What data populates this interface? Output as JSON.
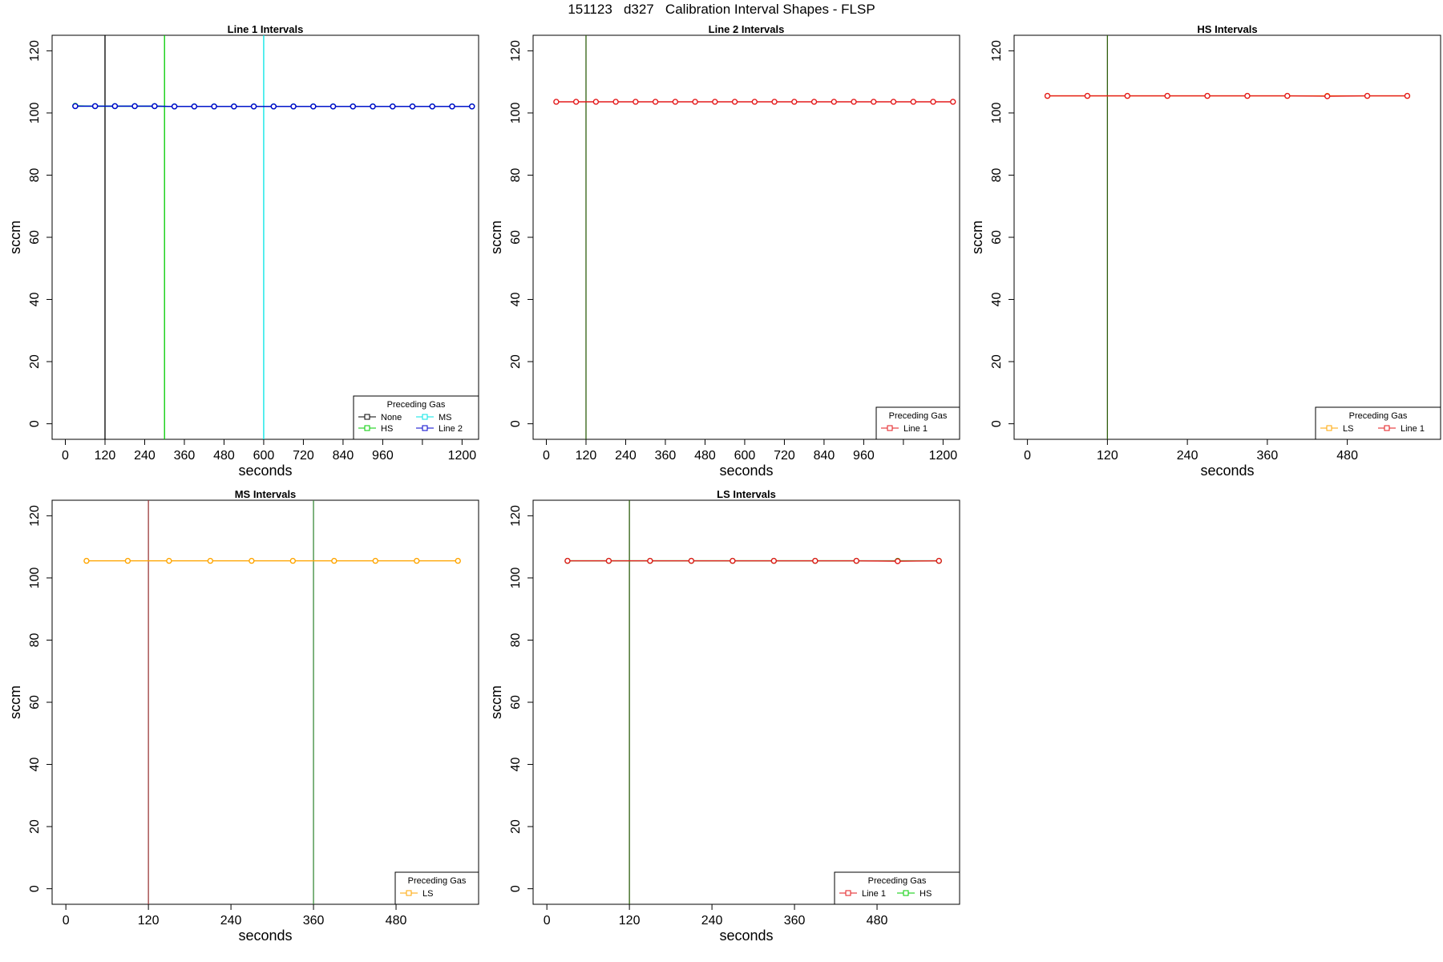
{
  "figure": {
    "title": "151123   d327   Calibration Interval Shapes - FLSP"
  },
  "colors": {
    "none": "#000000",
    "hs": "#00cc00",
    "ms": "#00e5e5",
    "line2": "#0000cc",
    "line1": "#e31a1c",
    "ls": "#ffa500",
    "teal_overlap": "#00a080",
    "red_vline": "#9b3b3b",
    "green_vline": "#3a8a3a",
    "olive_vline": "#2e5e0e",
    "frame": "#000000"
  },
  "chart_data": [
    {
      "type": "line",
      "title": "Line 1 Intervals",
      "xlabel": "seconds",
      "ylabel": "sccm",
      "xlim": [
        -40,
        1250
      ],
      "ylim": [
        -5,
        125
      ],
      "xticks": [
        0,
        120,
        240,
        360,
        480,
        600,
        720,
        840,
        960,
        1080,
        1200
      ],
      "xtick_labels": [
        "0",
        "120",
        "240",
        "360",
        "480",
        "600",
        "720",
        "840",
        "960",
        "",
        "1200"
      ],
      "yticks": [
        0,
        20,
        40,
        60,
        80,
        100,
        120
      ],
      "ytick_labels": [
        "0",
        "20",
        "40",
        "60",
        "80",
        "100",
        "120"
      ],
      "vlines": [
        {
          "x": 120,
          "color": "#000000"
        },
        {
          "x": 300,
          "color": "#00cc00"
        },
        {
          "x": 600,
          "color": "#00e5e5"
        }
      ],
      "series": [
        {
          "name": "None",
          "color": "#00a080",
          "x": [
            30,
            90,
            150,
            210,
            270,
            330,
            390,
            450,
            510,
            570,
            630,
            690,
            750,
            810,
            870,
            930,
            990,
            1050,
            1110,
            1170,
            1230
          ],
          "y": [
            102.2,
            102.2,
            102.2,
            102.2,
            102.2,
            102.1,
            102.1,
            102.1,
            102.1,
            102.1,
            102.1,
            102.1,
            102.1,
            102.1,
            102.1,
            102.1,
            102.1,
            102.1,
            102.1,
            102.1,
            102.1
          ]
        },
        {
          "name": "HS",
          "color": "#00cc00",
          "x": [
            30,
            90,
            150,
            210,
            270,
            330,
            390,
            450,
            510,
            570,
            630,
            690,
            750,
            810,
            870,
            930,
            990,
            1050,
            1110,
            1170,
            1230
          ],
          "y": [
            102.3,
            102.2,
            102.2,
            102.2,
            102.2,
            102.1,
            102.1,
            102.1,
            102.1,
            102.1,
            102.1,
            102.1,
            102.1,
            102.1,
            102.1,
            102.1,
            102.1,
            102.1,
            102.1,
            102.1,
            102.1
          ]
        },
        {
          "name": "MS",
          "color": "#00e5e5",
          "x": [
            30,
            90,
            150,
            210,
            270,
            330,
            390,
            450,
            510,
            570,
            630,
            690,
            750,
            810,
            870,
            930,
            990,
            1050,
            1110,
            1170,
            1230
          ],
          "y": [
            102.2,
            102.2,
            102.2,
            102.2,
            102.2,
            102.1,
            102.1,
            102.1,
            102.1,
            102.1,
            102.1,
            102.1,
            102.1,
            102.1,
            102.1,
            102.1,
            102.1,
            102.1,
            102.1,
            102.1,
            102.1
          ]
        },
        {
          "name": "Line 2",
          "color": "#0000cc",
          "x": [
            30,
            90,
            150,
            210,
            270,
            330,
            390,
            450,
            510,
            570,
            630,
            690,
            750,
            810,
            870,
            930,
            990,
            1050,
            1110,
            1170,
            1230
          ],
          "y": [
            102.2,
            102.2,
            102.2,
            102.2,
            102.2,
            102.1,
            102.1,
            102.1,
            102.1,
            102.1,
            102.1,
            102.1,
            102.1,
            102.1,
            102.1,
            102.1,
            102.1,
            102.1,
            102.1,
            102.1,
            102.1
          ]
        }
      ],
      "legend": {
        "title": "Preceding Gas",
        "position": "bottom-right",
        "columns": 2,
        "entries": [
          {
            "label": "None",
            "color": "#000000"
          },
          {
            "label": "MS",
            "color": "#00e5e5"
          },
          {
            "label": "HS",
            "color": "#00cc00"
          },
          {
            "label": "Line 2",
            "color": "#0000cc"
          }
        ]
      }
    },
    {
      "type": "line",
      "title": "Line 2 Intervals",
      "xlabel": "seconds",
      "ylabel": "sccm",
      "xlim": [
        -40,
        1250
      ],
      "ylim": [
        -5,
        125
      ],
      "xticks": [
        0,
        120,
        240,
        360,
        480,
        600,
        720,
        840,
        960,
        1080,
        1200
      ],
      "xtick_labels": [
        "0",
        "120",
        "240",
        "360",
        "480",
        "600",
        "720",
        "840",
        "960",
        "",
        "1200"
      ],
      "yticks": [
        0,
        20,
        40,
        60,
        80,
        100,
        120
      ],
      "ytick_labels": [
        "0",
        "20",
        "40",
        "60",
        "80",
        "100",
        "120"
      ],
      "vlines": [
        {
          "x": 120,
          "color": "#2e5e0e"
        }
      ],
      "series": [
        {
          "name": "Line 1",
          "color": "#e31a1c",
          "x": [
            30,
            90,
            150,
            210,
            270,
            330,
            390,
            450,
            510,
            570,
            630,
            690,
            750,
            810,
            870,
            930,
            990,
            1050,
            1110,
            1170,
            1230
          ],
          "y": [
            103.6,
            103.6,
            103.6,
            103.6,
            103.6,
            103.6,
            103.6,
            103.6,
            103.6,
            103.6,
            103.6,
            103.6,
            103.6,
            103.6,
            103.6,
            103.6,
            103.6,
            103.6,
            103.6,
            103.6,
            103.6
          ]
        }
      ],
      "legend": {
        "title": "Preceding Gas",
        "position": "bottom-right",
        "columns": 1,
        "entries": [
          {
            "label": "Line 1",
            "color": "#e31a1c"
          }
        ]
      }
    },
    {
      "type": "line",
      "title": "HS Intervals",
      "xlabel": "seconds",
      "ylabel": "sccm",
      "xlim": [
        -20,
        620
      ],
      "ylim": [
        -5,
        125
      ],
      "xticks": [
        0,
        120,
        240,
        360,
        480
      ],
      "xtick_labels": [
        "0",
        "120",
        "240",
        "360",
        "480"
      ],
      "yticks": [
        0,
        20,
        40,
        60,
        80,
        100,
        120
      ],
      "ytick_labels": [
        "0",
        "20",
        "40",
        "60",
        "80",
        "100",
        "120"
      ],
      "vlines": [
        {
          "x": 120,
          "color": "#2e5e0e"
        }
      ],
      "series": [
        {
          "name": "LS",
          "color": "#ffa500",
          "x": [
            30,
            90,
            150,
            210,
            270,
            330,
            390,
            450,
            510,
            570
          ],
          "y": [
            105.5,
            105.5,
            105.5,
            105.5,
            105.5,
            105.5,
            105.5,
            105.5,
            105.5,
            105.5
          ]
        },
        {
          "name": "Line 1",
          "color": "#e31a1c",
          "x": [
            30,
            90,
            150,
            210,
            270,
            330,
            390,
            450,
            510,
            570
          ],
          "y": [
            105.5,
            105.5,
            105.5,
            105.5,
            105.5,
            105.5,
            105.5,
            105.4,
            105.5,
            105.5
          ]
        }
      ],
      "legend": {
        "title": "Preceding Gas",
        "position": "bottom-right",
        "columns": 2,
        "entries": [
          {
            "label": "LS",
            "color": "#ffa500"
          },
          {
            "label": "Line 1",
            "color": "#e31a1c"
          }
        ]
      }
    },
    {
      "type": "line",
      "title": "MS Intervals",
      "xlabel": "seconds",
      "ylabel": "sccm",
      "xlim": [
        -20,
        600
      ],
      "ylim": [
        -5,
        125
      ],
      "xticks": [
        0,
        120,
        240,
        360,
        480
      ],
      "xtick_labels": [
        "0",
        "120",
        "240",
        "360",
        "480"
      ],
      "yticks": [
        0,
        20,
        40,
        60,
        80,
        100,
        120
      ],
      "ytick_labels": [
        "0",
        "20",
        "40",
        "60",
        "80",
        "100",
        "120"
      ],
      "vlines": [
        {
          "x": 120,
          "color": "#9b3b3b"
        },
        {
          "x": 360,
          "color": "#3a8a3a"
        }
      ],
      "series": [
        {
          "name": "LS",
          "color": "#ffa500",
          "x": [
            30,
            90,
            150,
            210,
            270,
            330,
            390,
            450,
            510,
            570
          ],
          "y": [
            105.5,
            105.5,
            105.5,
            105.5,
            105.5,
            105.5,
            105.5,
            105.5,
            105.5,
            105.5
          ]
        }
      ],
      "legend": {
        "title": "Preceding Gas",
        "position": "bottom-right",
        "columns": 1,
        "entries": [
          {
            "label": "LS",
            "color": "#ffa500"
          }
        ]
      }
    },
    {
      "type": "line",
      "title": "LS Intervals",
      "xlabel": "seconds",
      "ylabel": "sccm",
      "xlim": [
        -20,
        600
      ],
      "ylim": [
        -5,
        125
      ],
      "xticks": [
        0,
        120,
        240,
        360,
        480
      ],
      "xtick_labels": [
        "0",
        "120",
        "240",
        "360",
        "480"
      ],
      "yticks": [
        0,
        20,
        40,
        60,
        80,
        100,
        120
      ],
      "ytick_labels": [
        "0",
        "20",
        "40",
        "60",
        "80",
        "100",
        "120"
      ],
      "vlines": [
        {
          "x": 120,
          "color": "#2e5e0e"
        }
      ],
      "series": [
        {
          "name": "HS",
          "color": "#00cc00",
          "x": [
            30,
            90,
            150,
            210,
            270,
            330,
            390,
            450,
            510,
            570
          ],
          "y": [
            105.5,
            105.5,
            105.5,
            105.5,
            105.5,
            105.5,
            105.5,
            105.5,
            105.5,
            105.5
          ]
        },
        {
          "name": "Line 1",
          "color": "#e31a1c",
          "x": [
            30,
            90,
            150,
            210,
            270,
            330,
            390,
            450,
            510,
            570
          ],
          "y": [
            105.5,
            105.5,
            105.5,
            105.5,
            105.5,
            105.5,
            105.5,
            105.5,
            105.4,
            105.5
          ]
        }
      ],
      "legend": {
        "title": "Preceding Gas",
        "position": "bottom-right",
        "columns": 2,
        "entries": [
          {
            "label": "Line 1",
            "color": "#e31a1c"
          },
          {
            "label": "HS",
            "color": "#00cc00"
          }
        ]
      }
    }
  ]
}
